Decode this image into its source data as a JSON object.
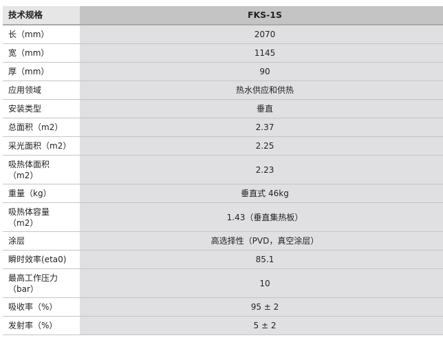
{
  "header": {
    "label": "技术规格",
    "model": "FKS-1S"
  },
  "rows": [
    {
      "label": "长（mm）",
      "value": "2070"
    },
    {
      "label": "宽（mm）",
      "value": "1145"
    },
    {
      "label": "厚（mm）",
      "value": "90"
    },
    {
      "label": "应用领域",
      "value": "热水供应和供热"
    },
    {
      "label": "安装类型",
      "value": "垂直"
    },
    {
      "label": "总面积（m2）",
      "value": "2.37"
    },
    {
      "label": "采光面积（m2）",
      "value": "2.25"
    },
    {
      "label": "吸热体面积（m2）",
      "value": "2.23"
    },
    {
      "label": "重量（kg）",
      "value": "垂直式 46kg"
    },
    {
      "label": "吸热体容量（m2）",
      "value": "1.43（垂直集热板）"
    },
    {
      "label": "涂层",
      "value": "高选择性（PVD，真空涂层）"
    },
    {
      "label": "瞬时效率(eta0)",
      "value": "85.1"
    },
    {
      "label": "最高工作压力（bar）",
      "value": "10"
    },
    {
      "label": "吸收率（%）",
      "value": "95 ± 2"
    },
    {
      "label": "发射率（%）",
      "value": "5 ± 2"
    }
  ]
}
